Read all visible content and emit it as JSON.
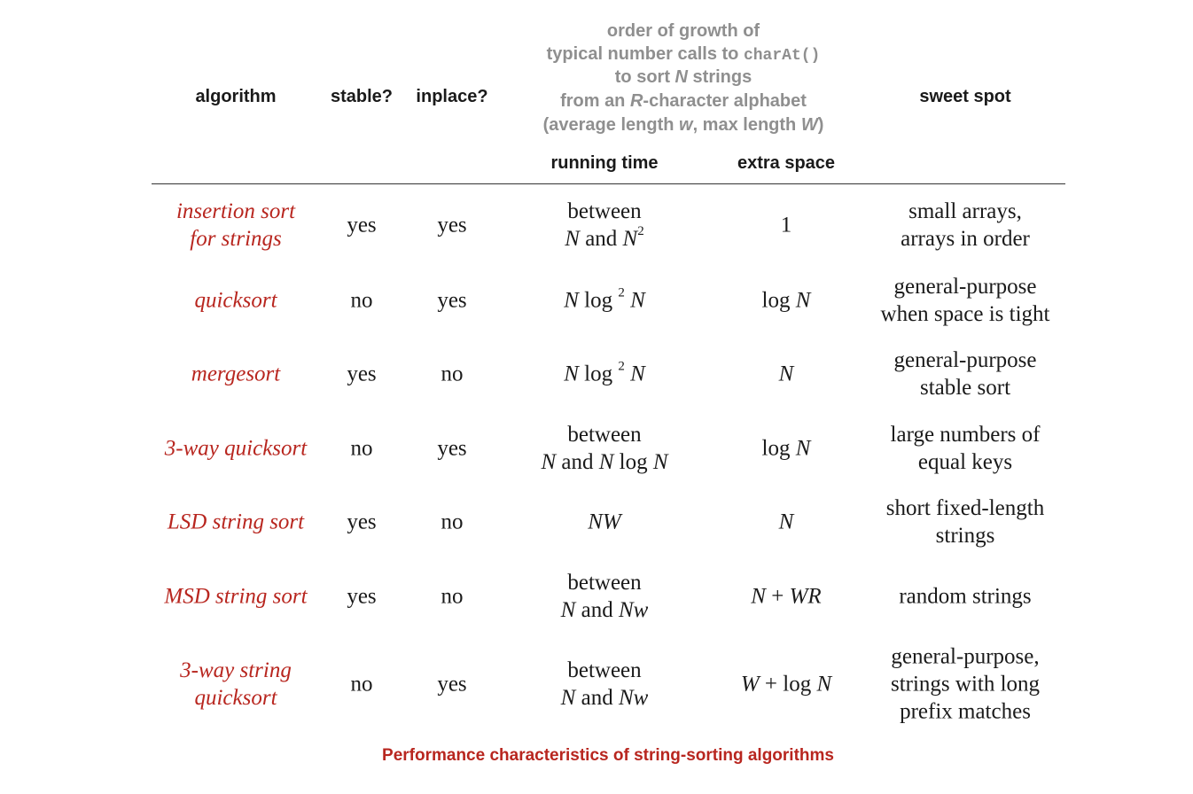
{
  "headers": {
    "algorithm": "algorithm",
    "stable": "stable?",
    "inplace": "inplace?",
    "growth_line1": "order of growth of",
    "growth_line2_a": "typical number calls to ",
    "growth_line2_code": "charAt()",
    "growth_line3_a": "to sort ",
    "growth_line3_N": "N",
    "growth_line3_b": " strings",
    "growth_line4_a": "from an ",
    "growth_line4_R": "R",
    "growth_line4_b": "-character alphabet",
    "growth_line5_a": "(average length ",
    "growth_line5_w": "w",
    "growth_line5_b": ", max length ",
    "growth_line5_W": "W",
    "growth_line5_c": ")",
    "running_time": "running time",
    "extra_space": "extra space",
    "sweet_spot": "sweet spot"
  },
  "rows": [
    {
      "algorithm": [
        "insertion sort",
        "for strings"
      ],
      "stable": "yes",
      "inplace": "yes",
      "running_time": {
        "line1": "between",
        "a": "N",
        "and": " and ",
        "b": "N",
        "sup": "2"
      },
      "extra_space": "1",
      "sweet_spot": [
        "small arrays,",
        "arrays in order"
      ]
    },
    {
      "algorithm": [
        "quicksort"
      ],
      "stable": "no",
      "inplace": "yes",
      "running_time": {
        "a": "N",
        "log": " log ",
        "sup": "2",
        "b": " N"
      },
      "extra_space": {
        "log": "log ",
        "v": "N"
      },
      "sweet_spot": [
        "general-purpose",
        "when space is tight"
      ]
    },
    {
      "algorithm": [
        "mergesort"
      ],
      "stable": "yes",
      "inplace": "no",
      "running_time": {
        "a": "N",
        "log": " log ",
        "sup": "2",
        "b": " N"
      },
      "extra_space": "N",
      "sweet_spot": [
        "general-purpose",
        "stable sort"
      ]
    },
    {
      "algorithm": [
        "3-way quicksort"
      ],
      "stable": "no",
      "inplace": "yes",
      "running_time": {
        "line1": "between",
        "a": "N",
        "and": " and ",
        "b": "N",
        "log": " log ",
        "c": "N"
      },
      "extra_space": {
        "log": "log ",
        "v": "N"
      },
      "sweet_spot": [
        "large numbers of",
        "equal keys"
      ]
    },
    {
      "algorithm": [
        "LSD string sort"
      ],
      "stable": "yes",
      "inplace": "no",
      "running_time": "NW",
      "extra_space": "N",
      "sweet_spot": [
        "short fixed-length",
        "strings"
      ]
    },
    {
      "algorithm": [
        "MSD string sort"
      ],
      "stable": "yes",
      "inplace": "no",
      "running_time": {
        "line1": "between",
        "a": "N",
        "and": " and ",
        "b": "Nw"
      },
      "extra_space": {
        "a": "N",
        "op": " + ",
        "b": "WR"
      },
      "sweet_spot": [
        "random strings"
      ]
    },
    {
      "algorithm": [
        "3-way string",
        "quicksort"
      ],
      "stable": "no",
      "inplace": "yes",
      "running_time": {
        "line1": "between",
        "a": "N",
        "and": " and ",
        "b": "Nw"
      },
      "extra_space": {
        "a": "W",
        "op": " + log ",
        "b": "N"
      },
      "sweet_spot": [
        "general-purpose,",
        "strings with long",
        "prefix matches"
      ]
    }
  ],
  "caption": "Performance characteristics of string-sorting algorithms"
}
